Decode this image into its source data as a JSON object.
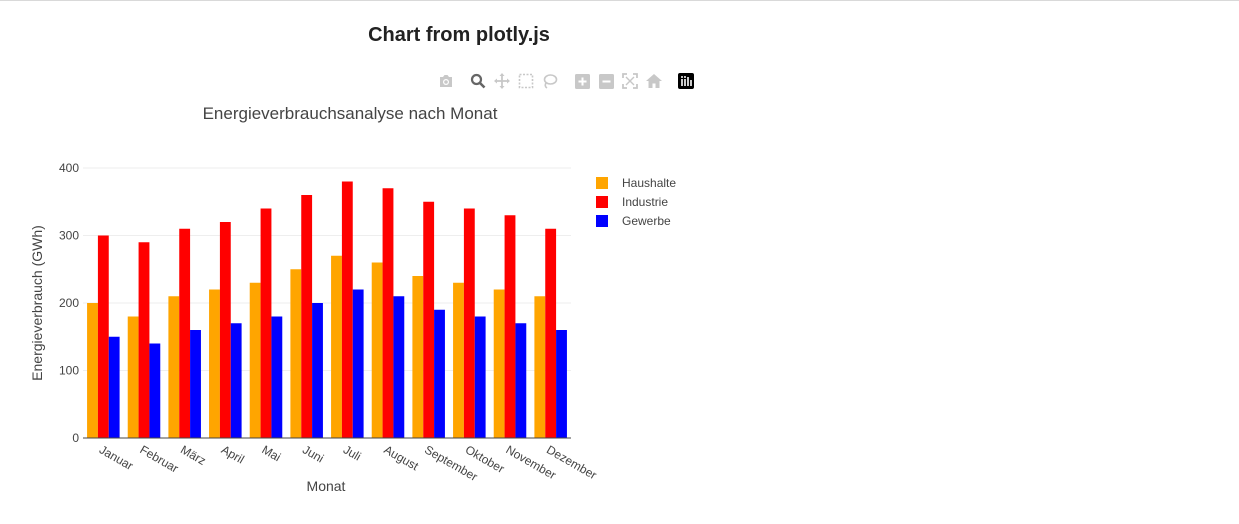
{
  "page": {
    "title": "Chart from plotly.js"
  },
  "modebar": {
    "buttons": [
      {
        "name": "camera-icon"
      },
      {
        "name": "zoom-icon"
      },
      {
        "name": "pan-icon"
      },
      {
        "name": "box-select-icon"
      },
      {
        "name": "lasso-icon"
      },
      {
        "name": "zoom-in-icon"
      },
      {
        "name": "zoom-out-icon"
      },
      {
        "name": "autoscale-icon"
      },
      {
        "name": "home-icon"
      },
      {
        "name": "plotly-logo-icon"
      }
    ]
  },
  "chart_data": {
    "type": "bar",
    "barmode": "group",
    "title": "Energieverbrauchsanalyse nach Monat",
    "xlabel": "Monat",
    "ylabel": "Energieverbrauch (GWh)",
    "categories": [
      "Januar",
      "Februar",
      "März",
      "April",
      "Mai",
      "Juni",
      "Juli",
      "August",
      "September",
      "Oktober",
      "November",
      "Dezember"
    ],
    "series": [
      {
        "name": "Haushalte",
        "color": "#FFA500",
        "values": [
          200,
          180,
          210,
          220,
          230,
          250,
          270,
          260,
          240,
          230,
          220,
          210
        ]
      },
      {
        "name": "Industrie",
        "color": "#FF0000",
        "values": [
          300,
          290,
          310,
          320,
          340,
          360,
          380,
          370,
          350,
          340,
          330,
          310
        ]
      },
      {
        "name": "Gewerbe",
        "color": "#0000FF",
        "values": [
          150,
          140,
          160,
          170,
          180,
          200,
          220,
          210,
          190,
          180,
          170,
          160
        ]
      }
    ],
    "ylim": [
      0,
      400
    ],
    "yticks": [
      0,
      100,
      200,
      300,
      400
    ],
    "grid": true,
    "legend_position": "top-right"
  }
}
